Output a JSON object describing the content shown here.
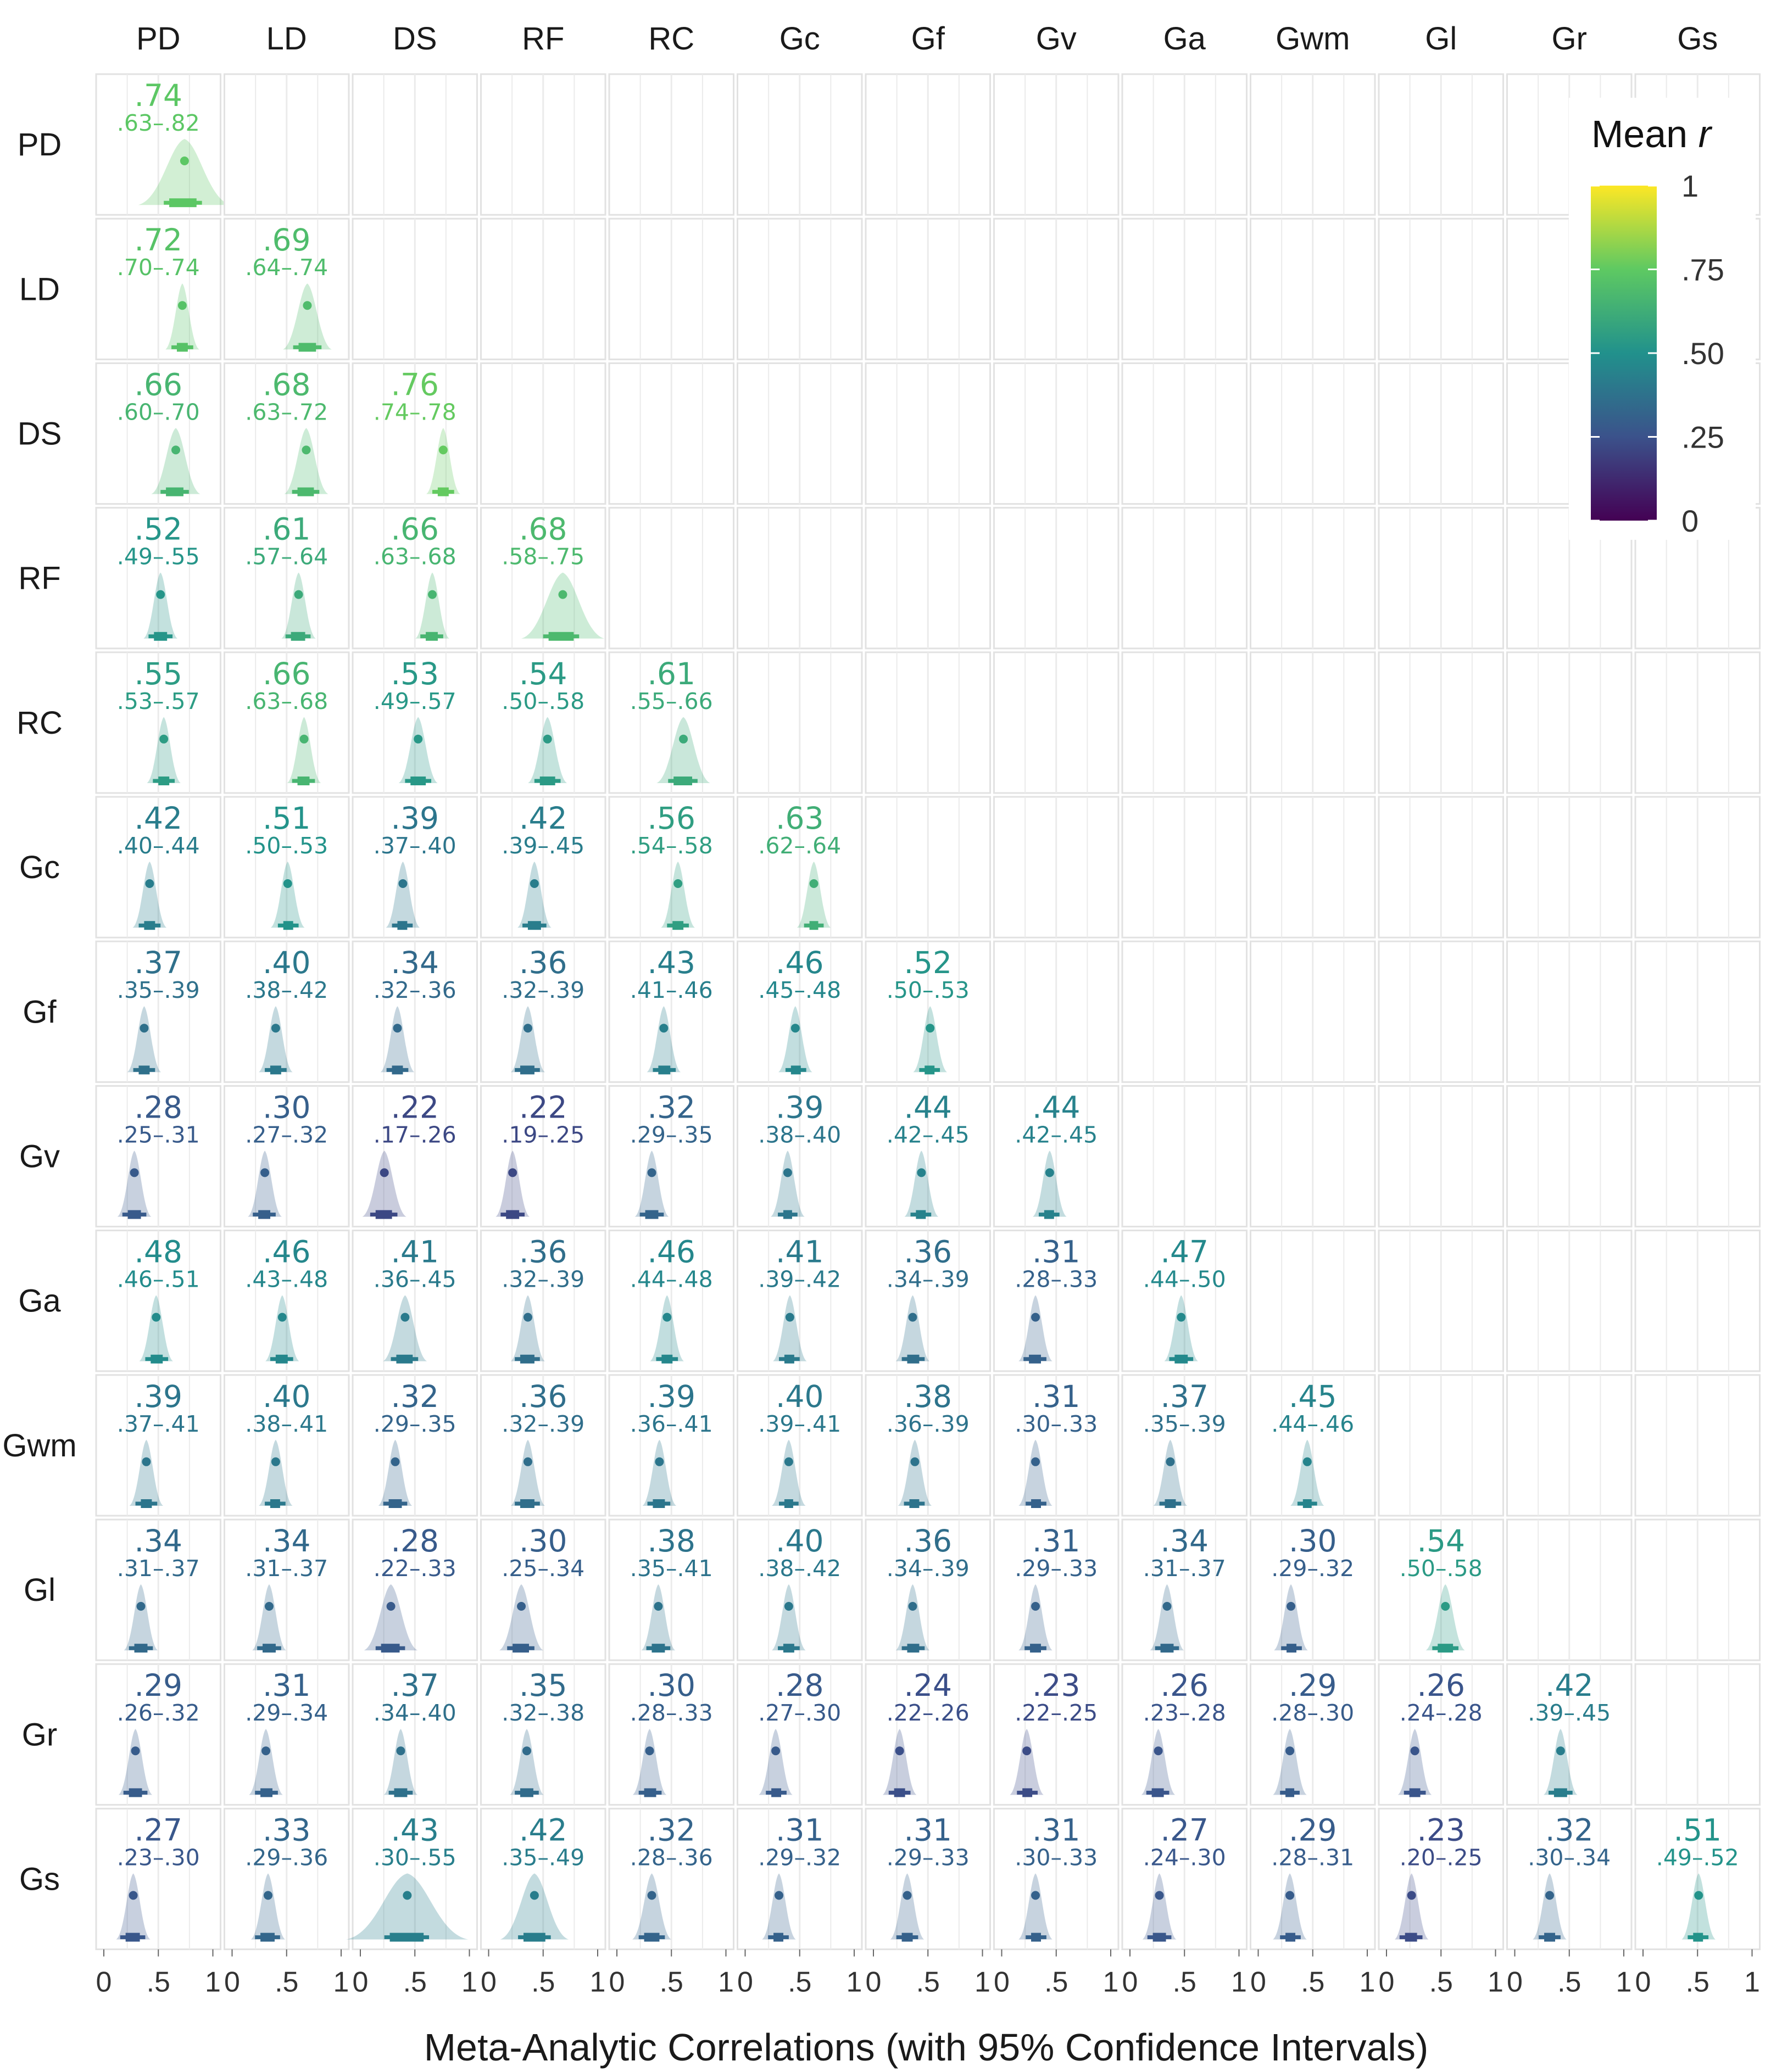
{
  "chart_data": {
    "type": "heatmap",
    "xlabel": "Meta-Analytic Correlations (with 95% Confidence Intervals)",
    "ylabel": "",
    "columns": [
      "PD",
      "LD",
      "DS",
      "RF",
      "RC",
      "Gc",
      "Gf",
      "Gv",
      "Ga",
      "Gwm",
      "Gl",
      "Gr",
      "Gs"
    ],
    "rows": [
      "PD",
      "LD",
      "DS",
      "RF",
      "RC",
      "Gc",
      "Gf",
      "Gv",
      "Ga",
      "Gwm",
      "Gl",
      "Gr",
      "Gs"
    ],
    "xlim": [
      0,
      1
    ],
    "x_ticks": [
      "0",
      ".5",
      "1"
    ],
    "grid": true,
    "legend": {
      "title_main": "Mean ",
      "title_italic": "r",
      "position": "top-right",
      "ticks": [
        "0",
        ".25",
        ".50",
        ".75",
        "1"
      ],
      "range": [
        0,
        1
      ],
      "palette": [
        "#440154",
        "#3b528b",
        "#21918c",
        "#5ec962",
        "#fde725"
      ]
    },
    "cells": [
      {
        "row": "PD",
        "col": "PD",
        "r": ".74",
        "ci": ".63–.82"
      },
      {
        "row": "LD",
        "col": "PD",
        "r": ".72",
        "ci": ".70–.74"
      },
      {
        "row": "LD",
        "col": "LD",
        "r": ".69",
        "ci": ".64–.74"
      },
      {
        "row": "DS",
        "col": "PD",
        "r": ".66",
        "ci": ".60–.70"
      },
      {
        "row": "DS",
        "col": "LD",
        "r": ".68",
        "ci": ".63–.72"
      },
      {
        "row": "DS",
        "col": "DS",
        "r": ".76",
        "ci": ".74–.78"
      },
      {
        "row": "RF",
        "col": "PD",
        "r": ".52",
        "ci": ".49–.55"
      },
      {
        "row": "RF",
        "col": "LD",
        "r": ".61",
        "ci": ".57–.64"
      },
      {
        "row": "RF",
        "col": "DS",
        "r": ".66",
        "ci": ".63–.68"
      },
      {
        "row": "RF",
        "col": "RF",
        "r": ".68",
        "ci": ".58–.75"
      },
      {
        "row": "RC",
        "col": "PD",
        "r": ".55",
        "ci": ".53–.57"
      },
      {
        "row": "RC",
        "col": "LD",
        "r": ".66",
        "ci": ".63–.68"
      },
      {
        "row": "RC",
        "col": "DS",
        "r": ".53",
        "ci": ".49–.57"
      },
      {
        "row": "RC",
        "col": "RF",
        "r": ".54",
        "ci": ".50–.58"
      },
      {
        "row": "RC",
        "col": "RC",
        "r": ".61",
        "ci": ".55–.66"
      },
      {
        "row": "Gc",
        "col": "PD",
        "r": ".42",
        "ci": ".40–.44"
      },
      {
        "row": "Gc",
        "col": "LD",
        "r": ".51",
        "ci": ".50–.53"
      },
      {
        "row": "Gc",
        "col": "DS",
        "r": ".39",
        "ci": ".37–.40"
      },
      {
        "row": "Gc",
        "col": "RF",
        "r": ".42",
        "ci": ".39–.45"
      },
      {
        "row": "Gc",
        "col": "RC",
        "r": ".56",
        "ci": ".54–.58"
      },
      {
        "row": "Gc",
        "col": "Gc",
        "r": ".63",
        "ci": ".62–.64"
      },
      {
        "row": "Gf",
        "col": "PD",
        "r": ".37",
        "ci": ".35–.39"
      },
      {
        "row": "Gf",
        "col": "LD",
        "r": ".40",
        "ci": ".38–.42"
      },
      {
        "row": "Gf",
        "col": "DS",
        "r": ".34",
        "ci": ".32–.36"
      },
      {
        "row": "Gf",
        "col": "RF",
        "r": ".36",
        "ci": ".32–.39"
      },
      {
        "row": "Gf",
        "col": "RC",
        "r": ".43",
        "ci": ".41–.46"
      },
      {
        "row": "Gf",
        "col": "Gc",
        "r": ".46",
        "ci": ".45–.48"
      },
      {
        "row": "Gf",
        "col": "Gf",
        "r": ".52",
        "ci": ".50–.53"
      },
      {
        "row": "Gv",
        "col": "PD",
        "r": ".28",
        "ci": ".25–.31"
      },
      {
        "row": "Gv",
        "col": "LD",
        "r": ".30",
        "ci": ".27–.32"
      },
      {
        "row": "Gv",
        "col": "DS",
        "r": ".22",
        "ci": ".17–.26"
      },
      {
        "row": "Gv",
        "col": "RF",
        "r": ".22",
        "ci": ".19–.25"
      },
      {
        "row": "Gv",
        "col": "RC",
        "r": ".32",
        "ci": ".29–.35"
      },
      {
        "row": "Gv",
        "col": "Gc",
        "r": ".39",
        "ci": ".38–.40"
      },
      {
        "row": "Gv",
        "col": "Gf",
        "r": ".44",
        "ci": ".42–.45"
      },
      {
        "row": "Gv",
        "col": "Gv",
        "r": ".44",
        "ci": ".42–.45"
      },
      {
        "row": "Ga",
        "col": "PD",
        "r": ".48",
        "ci": ".46–.51"
      },
      {
        "row": "Ga",
        "col": "LD",
        "r": ".46",
        "ci": ".43–.48"
      },
      {
        "row": "Ga",
        "col": "DS",
        "r": ".41",
        "ci": ".36–.45"
      },
      {
        "row": "Ga",
        "col": "RF",
        "r": ".36",
        "ci": ".32–.39"
      },
      {
        "row": "Ga",
        "col": "RC",
        "r": ".46",
        "ci": ".44–.48"
      },
      {
        "row": "Ga",
        "col": "Gc",
        "r": ".41",
        "ci": ".39–.42"
      },
      {
        "row": "Ga",
        "col": "Gf",
        "r": ".36",
        "ci": ".34–.39"
      },
      {
        "row": "Ga",
        "col": "Gv",
        "r": ".31",
        "ci": ".28–.33"
      },
      {
        "row": "Ga",
        "col": "Ga",
        "r": ".47",
        "ci": ".44–.50"
      },
      {
        "row": "Gwm",
        "col": "PD",
        "r": ".39",
        "ci": ".37–.41"
      },
      {
        "row": "Gwm",
        "col": "LD",
        "r": ".40",
        "ci": ".38–.41"
      },
      {
        "row": "Gwm",
        "col": "DS",
        "r": ".32",
        "ci": ".29–.35"
      },
      {
        "row": "Gwm",
        "col": "RF",
        "r": ".36",
        "ci": ".32–.39"
      },
      {
        "row": "Gwm",
        "col": "RC",
        "r": ".39",
        "ci": ".36–.41"
      },
      {
        "row": "Gwm",
        "col": "Gc",
        "r": ".40",
        "ci": ".39–.41"
      },
      {
        "row": "Gwm",
        "col": "Gf",
        "r": ".38",
        "ci": ".36–.39"
      },
      {
        "row": "Gwm",
        "col": "Gv",
        "r": ".31",
        "ci": ".30–.33"
      },
      {
        "row": "Gwm",
        "col": "Ga",
        "r": ".37",
        "ci": ".35–.39"
      },
      {
        "row": "Gwm",
        "col": "Gwm",
        "r": ".45",
        "ci": ".44–.46"
      },
      {
        "row": "Gl",
        "col": "PD",
        "r": ".34",
        "ci": ".31–.37"
      },
      {
        "row": "Gl",
        "col": "LD",
        "r": ".34",
        "ci": ".31–.37"
      },
      {
        "row": "Gl",
        "col": "DS",
        "r": ".28",
        "ci": ".22–.33"
      },
      {
        "row": "Gl",
        "col": "RF",
        "r": ".30",
        "ci": ".25–.34"
      },
      {
        "row": "Gl",
        "col": "RC",
        "r": ".38",
        "ci": ".35–.41"
      },
      {
        "row": "Gl",
        "col": "Gc",
        "r": ".40",
        "ci": ".38–.42"
      },
      {
        "row": "Gl",
        "col": "Gf",
        "r": ".36",
        "ci": ".34–.39"
      },
      {
        "row": "Gl",
        "col": "Gv",
        "r": ".31",
        "ci": ".29–.33"
      },
      {
        "row": "Gl",
        "col": "Ga",
        "r": ".34",
        "ci": ".31–.37"
      },
      {
        "row": "Gl",
        "col": "Gwm",
        "r": ".30",
        "ci": ".29–.32"
      },
      {
        "row": "Gl",
        "col": "Gl",
        "r": ".54",
        "ci": ".50–.58"
      },
      {
        "row": "Gr",
        "col": "PD",
        "r": ".29",
        "ci": ".26–.32"
      },
      {
        "row": "Gr",
        "col": "LD",
        "r": ".31",
        "ci": ".29–.34"
      },
      {
        "row": "Gr",
        "col": "DS",
        "r": ".37",
        "ci": ".34–.40"
      },
      {
        "row": "Gr",
        "col": "RF",
        "r": ".35",
        "ci": ".32–.38"
      },
      {
        "row": "Gr",
        "col": "RC",
        "r": ".30",
        "ci": ".28–.33"
      },
      {
        "row": "Gr",
        "col": "Gc",
        "r": ".28",
        "ci": ".27–.30"
      },
      {
        "row": "Gr",
        "col": "Gf",
        "r": ".24",
        "ci": ".22–.26"
      },
      {
        "row": "Gr",
        "col": "Gv",
        "r": ".23",
        "ci": ".22–.25"
      },
      {
        "row": "Gr",
        "col": "Ga",
        "r": ".26",
        "ci": ".23–.28"
      },
      {
        "row": "Gr",
        "col": "Gwm",
        "r": ".29",
        "ci": ".28–.30"
      },
      {
        "row": "Gr",
        "col": "Gl",
        "r": ".26",
        "ci": ".24–.28"
      },
      {
        "row": "Gr",
        "col": "Gr",
        "r": ".42",
        "ci": ".39–.45"
      },
      {
        "row": "Gs",
        "col": "PD",
        "r": ".27",
        "ci": ".23–.30"
      },
      {
        "row": "Gs",
        "col": "LD",
        "r": ".33",
        "ci": ".29–.36"
      },
      {
        "row": "Gs",
        "col": "DS",
        "r": ".43",
        "ci": ".30–.55"
      },
      {
        "row": "Gs",
        "col": "RF",
        "r": ".42",
        "ci": ".35–.49"
      },
      {
        "row": "Gs",
        "col": "RC",
        "r": ".32",
        "ci": ".28–.36"
      },
      {
        "row": "Gs",
        "col": "Gc",
        "r": ".31",
        "ci": ".29–.32"
      },
      {
        "row": "Gs",
        "col": "Gf",
        "r": ".31",
        "ci": ".29–.33"
      },
      {
        "row": "Gs",
        "col": "Gv",
        "r": ".31",
        "ci": ".30–.33"
      },
      {
        "row": "Gs",
        "col": "Ga",
        "r": ".27",
        "ci": ".24–.30"
      },
      {
        "row": "Gs",
        "col": "Gwm",
        "r": ".29",
        "ci": ".28–.31"
      },
      {
        "row": "Gs",
        "col": "Gl",
        "r": ".23",
        "ci": ".20–.25"
      },
      {
        "row": "Gs",
        "col": "Gr",
        "r": ".32",
        "ci": ".30–.34"
      },
      {
        "row": "Gs",
        "col": "Gs",
        "r": ".51",
        "ci": ".49–.52"
      }
    ]
  }
}
